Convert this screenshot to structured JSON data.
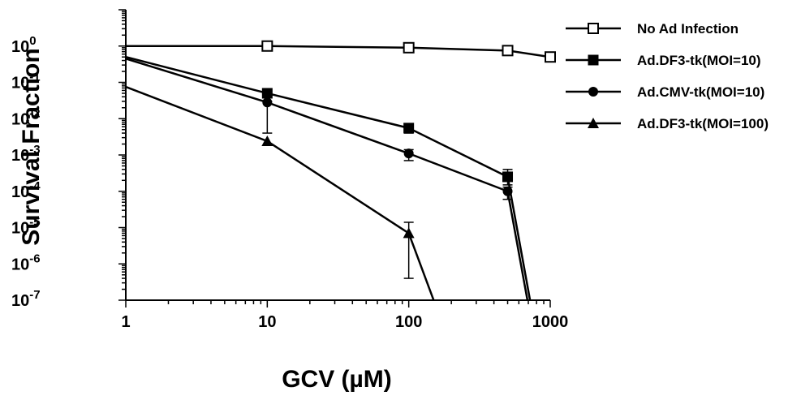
{
  "chart_data": {
    "type": "line",
    "title": "",
    "xlabel": "GCV (µM)",
    "ylabel": "Survival Fraction",
    "xscale": "log",
    "yscale": "log",
    "xlim": [
      1,
      1000
    ],
    "ylim": [
      1e-07,
      10
    ],
    "xtick_labels": [
      "1",
      "10",
      "100",
      "1000"
    ],
    "ytick_labels": [
      {
        "base": "10",
        "exp": "0"
      },
      {
        "base": "10",
        "exp": "-1"
      },
      {
        "base": "10",
        "exp": "-2"
      },
      {
        "base": "10",
        "exp": "-3"
      },
      {
        "base": "10",
        "exp": "-4"
      },
      {
        "base": "10",
        "exp": "-5"
      },
      {
        "base": "10",
        "exp": "-6"
      },
      {
        "base": "10",
        "exp": "-7"
      }
    ],
    "grid": false,
    "legend_position": "right",
    "series": [
      {
        "name": "No Ad Infection",
        "marker": "open-square",
        "x": [
          10,
          100,
          500,
          1000
        ],
        "y": [
          1.0,
          0.9,
          0.75,
          0.5
        ],
        "line_start": {
          "x": 1,
          "y": 1.0
        },
        "errors": []
      },
      {
        "name": "Ad.DF3-tk(MOI=10)",
        "marker": "filled-square",
        "x": [
          10,
          100,
          500
        ],
        "y": [
          0.05,
          0.0055,
          0.00025
        ],
        "line_start": {
          "x": 1,
          "y": 0.5
        },
        "line_end": {
          "x": 720,
          "y": 1e-07
        },
        "errors": [
          {
            "x": 100,
            "low": 0.004,
            "high": 0.007
          },
          {
            "x": 500,
            "low": 0.00015,
            "high": 0.0004
          }
        ]
      },
      {
        "name": "Ad.CMV-tk(MOI=10)",
        "marker": "filled-circle",
        "x": [
          10,
          100,
          500
        ],
        "y": [
          0.028,
          0.0011,
          0.0001
        ],
        "line_start": {
          "x": 1,
          "y": 0.45
        },
        "line_end": {
          "x": 690,
          "y": 1e-07
        },
        "errors": [
          {
            "x": 10,
            "low": 0.004,
            "high": 0.03
          },
          {
            "x": 100,
            "low": 0.0007,
            "high": 0.0014
          },
          {
            "x": 500,
            "low": 6e-05,
            "high": 0.00013
          }
        ]
      },
      {
        "name": "Ad.DF3-tk(MOI=100)",
        "marker": "filled-triangle",
        "x": [
          10,
          100
        ],
        "y": [
          0.0024,
          7e-06
        ],
        "line_start": {
          "x": 1,
          "y": 0.075
        },
        "line_end": {
          "x": 150,
          "y": 1e-07
        },
        "errors": [
          {
            "x": 100,
            "low": 4e-07,
            "high": 1.4e-05
          }
        ]
      }
    ]
  }
}
